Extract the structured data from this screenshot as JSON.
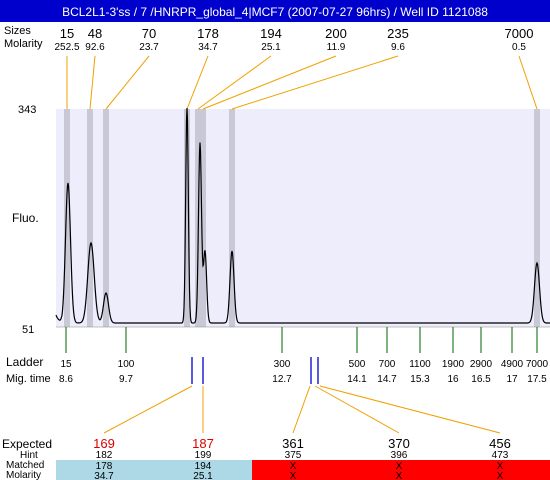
{
  "title": "BCL2L1-3'ss / 7 /HNRPR_global_4|MCF7 (2007-07-27 96hrs) / Well ID 1121088",
  "labels": {
    "sizes_row": "Sizes",
    "molarity_row": "Molarity",
    "fluo": "Fluo.",
    "ladder": "Ladder",
    "mig_time": "Mig. time",
    "expected": "Expected",
    "hint": "Hint",
    "matched": "Matched",
    "molarity_bottom": "Molarity"
  },
  "colors": {
    "header_bg": "#0000cc",
    "header_text": "#ffffff",
    "plot_bg": "#ededfb",
    "peak_band": "#c8c8d6",
    "connector": "#f0a000",
    "ladder_tick": "#006600",
    "matched_tick": "#0000cc",
    "expected_red": "#dd0000",
    "matched_ok_bg": "#add8e6",
    "unmatched_bg": "#ff0000"
  },
  "chart_data": {
    "type": "line",
    "ylabel": "Fluo.",
    "ylim": [
      51,
      343
    ],
    "peaks": [
      {
        "size": "15",
        "molarity": "252.5"
      },
      {
        "size": "48",
        "molarity": "92.6"
      },
      {
        "size": "70",
        "molarity": "23.7"
      },
      {
        "size": "178",
        "molarity": "34.7"
      },
      {
        "size": "194",
        "molarity": "25.1"
      },
      {
        "size": "200",
        "molarity": "11.9"
      },
      {
        "size": "235",
        "molarity": "9.6"
      },
      {
        "size": "7000",
        "molarity": "0.5"
      }
    ],
    "ladder": [
      {
        "size": "15",
        "time": "8.6"
      },
      {
        "size": "100",
        "time": "9.7"
      },
      {
        "size": "300",
        "time": "12.7"
      },
      {
        "size": "500",
        "time": "14.1"
      },
      {
        "size": "700",
        "time": "14.7"
      },
      {
        "size": "1100",
        "time": "15.3"
      },
      {
        "size": "1900",
        "time": "16"
      },
      {
        "size": "2900",
        "time": "16.5"
      },
      {
        "size": "4900",
        "time": "17"
      },
      {
        "size": "7000",
        "time": "17.5"
      }
    ],
    "expected": [
      {
        "expected": "169",
        "hint": "182",
        "matched": "178",
        "molarity": "34.7",
        "found": true
      },
      {
        "expected": "187",
        "hint": "199",
        "matched": "194",
        "molarity": "25.1",
        "found": true
      },
      {
        "expected": "361",
        "hint": "375",
        "matched": "X",
        "molarity": "X",
        "found": false
      },
      {
        "expected": "370",
        "hint": "396",
        "matched": "X",
        "molarity": "X",
        "found": false
      },
      {
        "expected": "456",
        "hint": "473",
        "matched": "X",
        "molarity": "X",
        "found": false
      }
    ]
  }
}
